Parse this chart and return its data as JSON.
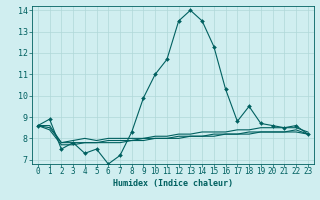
{
  "xlabel": "Humidex (Indice chaleur)",
  "background_color": "#d0eef0",
  "grid_color": "#b0d8d8",
  "line_color": "#006060",
  "spine_color": "#006060",
  "xlim": [
    -0.5,
    23.5
  ],
  "ylim": [
    6.8,
    14.2
  ],
  "xticks": [
    0,
    1,
    2,
    3,
    4,
    5,
    6,
    7,
    8,
    9,
    10,
    11,
    12,
    13,
    14,
    15,
    16,
    17,
    18,
    19,
    20,
    21,
    22,
    23
  ],
  "yticks": [
    7,
    8,
    9,
    10,
    11,
    12,
    13,
    14
  ],
  "series": [
    [
      8.6,
      8.9,
      7.5,
      7.8,
      7.3,
      7.5,
      6.8,
      7.2,
      8.3,
      9.9,
      11.0,
      11.7,
      13.5,
      14.0,
      13.5,
      12.3,
      10.3,
      8.8,
      9.5,
      8.7,
      8.6,
      8.5,
      8.6,
      8.2
    ],
    [
      8.6,
      8.6,
      7.8,
      7.9,
      8.0,
      7.9,
      8.0,
      8.0,
      8.0,
      8.0,
      8.1,
      8.1,
      8.2,
      8.2,
      8.3,
      8.3,
      8.3,
      8.4,
      8.4,
      8.5,
      8.5,
      8.5,
      8.5,
      8.3
    ],
    [
      8.6,
      8.5,
      7.8,
      7.8,
      7.8,
      7.8,
      7.8,
      7.8,
      7.9,
      7.9,
      8.0,
      8.0,
      8.1,
      8.1,
      8.1,
      8.2,
      8.2,
      8.2,
      8.3,
      8.3,
      8.3,
      8.3,
      8.3,
      8.2
    ],
    [
      8.6,
      8.4,
      7.7,
      7.7,
      7.8,
      7.8,
      7.9,
      7.9,
      7.9,
      8.0,
      8.0,
      8.0,
      8.0,
      8.1,
      8.1,
      8.1,
      8.2,
      8.2,
      8.2,
      8.3,
      8.3,
      8.3,
      8.4,
      8.2
    ]
  ],
  "tick_fontsize": 5.5,
  "xlabel_fontsize": 6.0,
  "marker": "D",
  "markersize": 2.0,
  "linewidth": 0.8
}
